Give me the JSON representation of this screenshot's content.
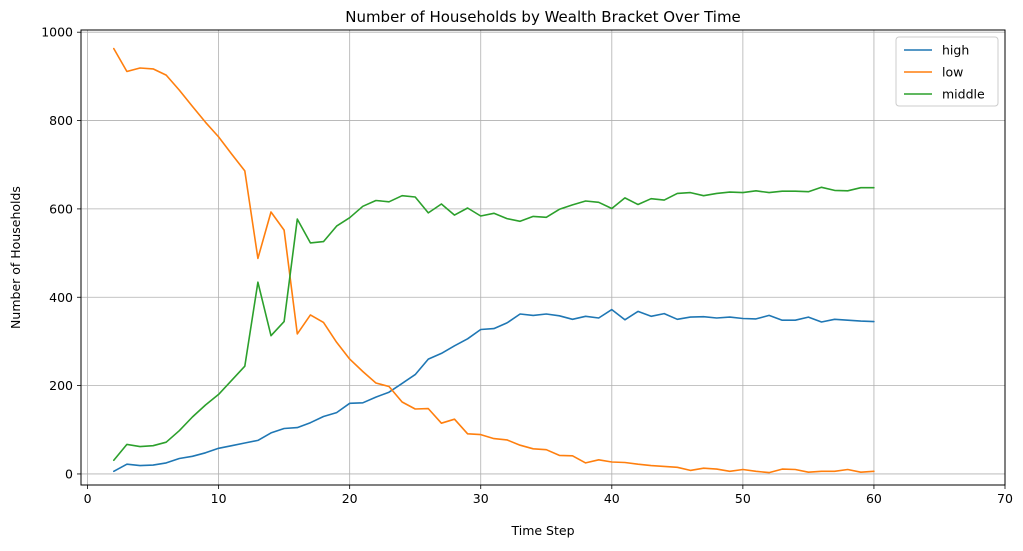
{
  "chart_data": {
    "type": "line",
    "title": "Number of Households by Wealth Bracket Over Time",
    "xlabel": "Time Step",
    "ylabel": "Number of Households",
    "xlim": [
      -0.5,
      70
    ],
    "ylim": [
      -25,
      1005
    ],
    "xticks": [
      0,
      10,
      20,
      30,
      40,
      50,
      60,
      70
    ],
    "yticks": [
      0,
      200,
      400,
      600,
      800,
      1000
    ],
    "grid": true,
    "legend_position": "top-right",
    "x": [
      2,
      3,
      4,
      5,
      6,
      7,
      8,
      9,
      10,
      11,
      12,
      13,
      14,
      15,
      16,
      17,
      18,
      19,
      20,
      21,
      22,
      23,
      24,
      25,
      26,
      27,
      28,
      29,
      30,
      31,
      32,
      33,
      34,
      35,
      36,
      37,
      38,
      39,
      40,
      41,
      42,
      43,
      44,
      45,
      46,
      47,
      48,
      49,
      50,
      51,
      52,
      53,
      54,
      55,
      56,
      57,
      58,
      59,
      60
    ],
    "series": [
      {
        "name": "high",
        "color": "#1f77b4",
        "values": [
          6,
          22,
          19,
          20,
          25,
          35,
          40,
          48,
          58,
          64,
          70,
          76,
          93,
          103,
          105,
          116,
          130,
          139,
          160,
          161,
          174,
          185,
          205,
          225,
          260,
          273,
          290,
          306,
          327,
          329,
          342,
          362,
          359,
          362,
          358,
          350,
          357,
          353,
          372,
          349,
          368,
          357,
          363,
          350,
          355,
          356,
          353,
          355,
          352,
          351,
          359,
          348,
          348,
          355,
          344,
          350,
          348,
          346,
          345
        ]
      },
      {
        "name": "low",
        "color": "#ff7f0e",
        "values": [
          963,
          911,
          919,
          917,
          903,
          869,
          832,
          796,
          763,
          724,
          686,
          488,
          593,
          552,
          317,
          360,
          343,
          298,
          260,
          232,
          206,
          198,
          163,
          147,
          148,
          115,
          124,
          91,
          89,
          80,
          77,
          65,
          57,
          55,
          42,
          41,
          25,
          32,
          27,
          26,
          22,
          19,
          17,
          15,
          8,
          13,
          11,
          6,
          10,
          6,
          3,
          11,
          10,
          4,
          6,
          6,
          10,
          4,
          6
        ]
      },
      {
        "name": "middle",
        "color": "#2ca02c",
        "values": [
          31,
          67,
          62,
          64,
          72,
          98,
          129,
          156,
          180,
          212,
          244,
          434,
          313,
          345,
          577,
          523,
          526,
          561,
          580,
          606,
          619,
          616,
          630,
          627,
          591,
          611,
          586,
          602,
          584,
          590,
          578,
          572,
          583,
          581,
          599,
          609,
          618,
          615,
          601,
          625,
          610,
          623,
          620,
          635,
          637,
          630,
          635,
          638,
          637,
          641,
          637,
          640,
          640,
          639,
          649,
          642,
          641,
          648,
          648
        ]
      }
    ]
  }
}
